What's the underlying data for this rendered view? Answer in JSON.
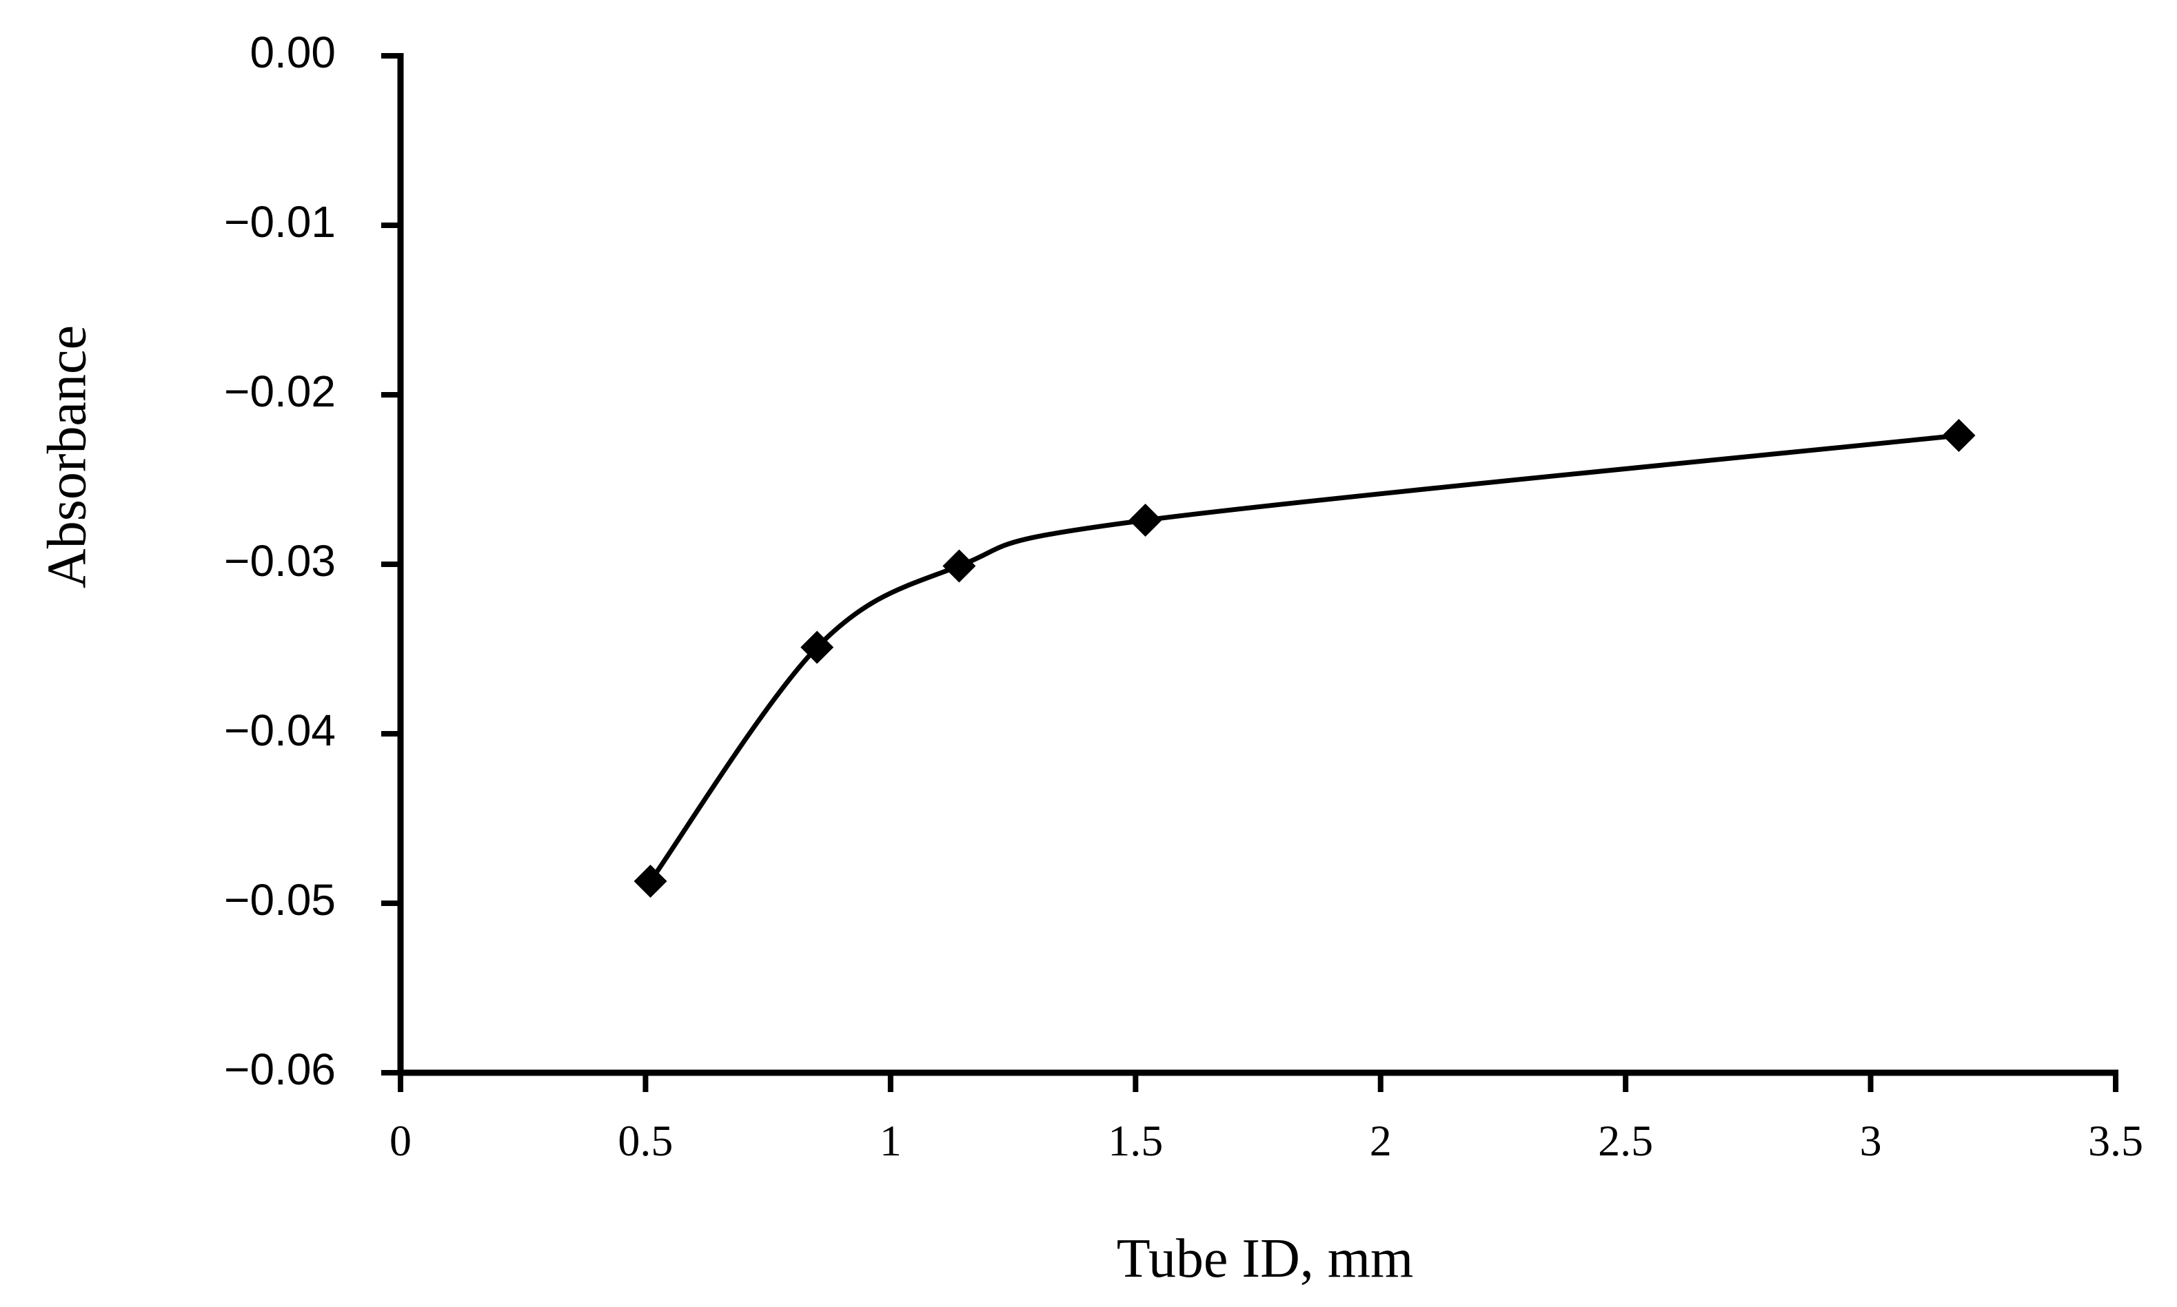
{
  "chart_data": {
    "type": "line",
    "title": "",
    "xlabel": "Tube ID, mm",
    "ylabel": "Absorbance",
    "xlim": [
      0,
      3.5
    ],
    "ylim": [
      -0.06,
      0.0
    ],
    "x_ticks": [
      0,
      0.5,
      1,
      1.5,
      2,
      2.5,
      3,
      3.5
    ],
    "x_tick_labels": [
      "0",
      "0.5",
      "1",
      "1.5",
      "2",
      "2.5",
      "3",
      "3.5"
    ],
    "y_ticks": [
      0.0,
      -0.01,
      -0.02,
      -0.03,
      -0.04,
      -0.05,
      -0.06
    ],
    "y_tick_labels": [
      "0.00",
      "−0.01",
      "−0.02",
      "−0.03",
      "−0.04",
      "−0.05",
      "−0.06"
    ],
    "grid": false,
    "line_style": "smooth",
    "marker": "diamond",
    "color": "#000000",
    "series": [
      {
        "x": [
          0.51,
          0.85,
          1.14,
          1.52,
          3.18
        ],
        "y": [
          -0.0487,
          -0.0349,
          -0.0301,
          -0.0274,
          -0.0224
        ]
      }
    ]
  }
}
